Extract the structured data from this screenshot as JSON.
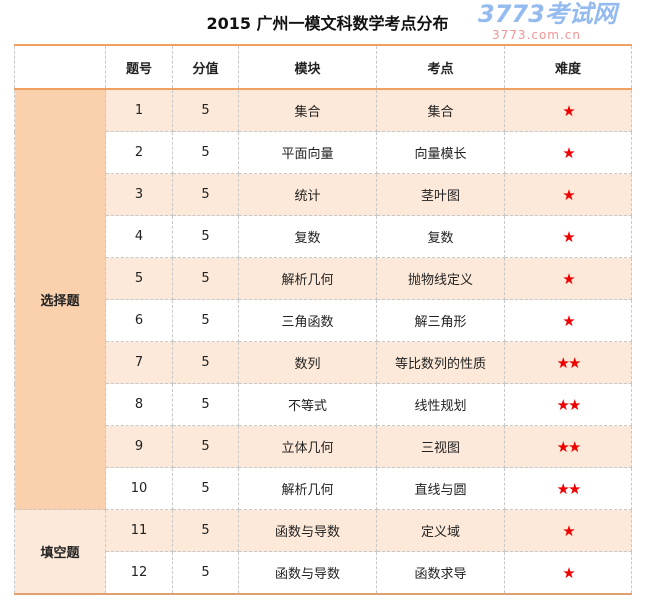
{
  "title": "2015 广州一模文科数学考点分布",
  "headers": [
    "",
    "题号",
    "分值",
    "模块",
    "考点",
    "难度"
  ],
  "categories": [
    {
      "label": "选择题",
      "rows": 10
    },
    {
      "label": "填空题",
      "rows": 2
    }
  ],
  "rows": [
    {
      "no": "1",
      "score": "5",
      "module": "集合",
      "point": "集合",
      "stars": "★"
    },
    {
      "no": "2",
      "score": "5",
      "module": "平面向量",
      "point": "向量模长",
      "stars": "★"
    },
    {
      "no": "3",
      "score": "5",
      "module": "统计",
      "point": "茎叶图",
      "stars": "★"
    },
    {
      "no": "4",
      "score": "5",
      "module": "复数",
      "point": "复数",
      "stars": "★"
    },
    {
      "no": "5",
      "score": "5",
      "module": "解析几何",
      "point": "抛物线定义",
      "stars": "★"
    },
    {
      "no": "6",
      "score": "5",
      "module": "三角函数",
      "point": "解三角形",
      "stars": "★"
    },
    {
      "no": "7",
      "score": "5",
      "module": "数列",
      "point": "等比数列的性质",
      "stars": "★★"
    },
    {
      "no": "8",
      "score": "5",
      "module": "不等式",
      "point": "线性规划",
      "stars": "★★"
    },
    {
      "no": "9",
      "score": "5",
      "module": "立体几何",
      "point": "三视图",
      "stars": "★★"
    },
    {
      "no": "10",
      "score": "5",
      "module": "解析几何",
      "point": "直线与圆",
      "stars": "★★"
    },
    {
      "no": "11",
      "score": "5",
      "module": "函数与导数",
      "point": "定义域",
      "stars": "★"
    },
    {
      "no": "12",
      "score": "5",
      "module": "函数与导数",
      "point": "函数求导",
      "stars": "★"
    }
  ],
  "star_color": "#ee0000",
  "watermark": {
    "logo": "3773考试网",
    "url": "3773.com.cn"
  }
}
